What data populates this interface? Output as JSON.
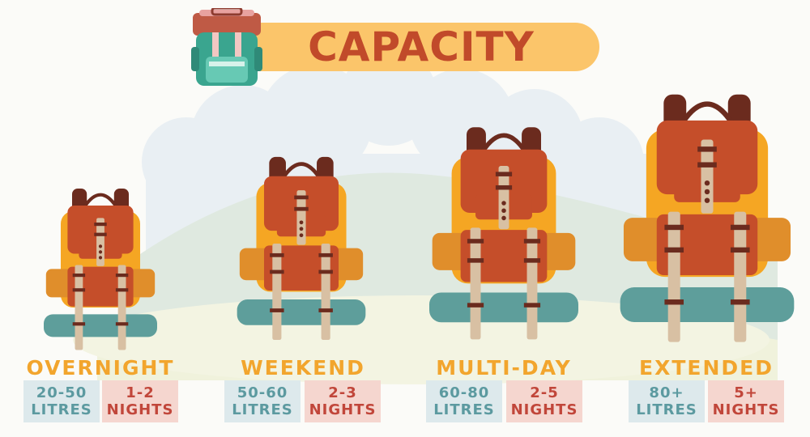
{
  "title": "CAPACITY",
  "colors": {
    "title_bar": "#fbc56a",
    "title_text": "#c14a2a",
    "category_text": "#f2a52d",
    "litres_bg": "#dde9ec",
    "litres_text": "#5c9aa0",
    "nights_bg": "#f5d6cf",
    "nights_text": "#c1463a",
    "pack_body": "#f5a623",
    "pack_flap": "#c54e2a",
    "sleeping_pad": "#5e9e9b"
  },
  "categories": [
    {
      "name": "OVERNIGHT",
      "litres_value": "20-50",
      "litres_unit": "LITRES",
      "nights_value": "1-2",
      "nights_unit": "NIGHTS"
    },
    {
      "name": "WEEKEND",
      "litres_value": "50-60",
      "litres_unit": "LITRES",
      "nights_value": "2-3",
      "nights_unit": "NIGHTS"
    },
    {
      "name": "MULTI-DAY",
      "litres_value": "60-80",
      "litres_unit": "LITRES",
      "nights_value": "2-5",
      "nights_unit": "NIGHTS"
    },
    {
      "name": "EXTENDED",
      "litres_value": "80+",
      "litres_unit": "LITRES",
      "nights_value": "5+",
      "nights_unit": "NIGHTS"
    }
  ]
}
